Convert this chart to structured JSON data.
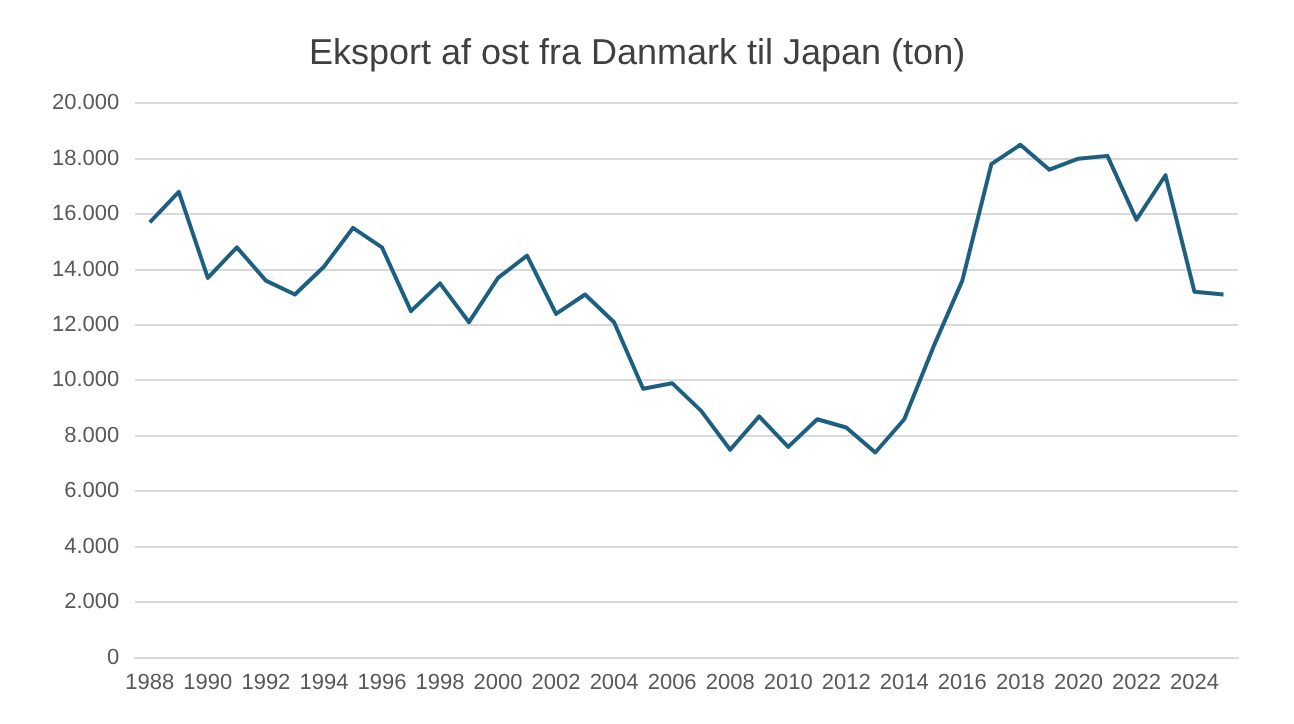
{
  "chart_data": {
    "type": "line",
    "title": "Eksport af ost fra Danmark til Japan (ton)",
    "categories": [
      "1988",
      null,
      "1990",
      null,
      "1992",
      null,
      "1994",
      null,
      "1996",
      null,
      "1998",
      null,
      "2000",
      null,
      "2002",
      null,
      "2004",
      null,
      "2006",
      null,
      "2008",
      null,
      "2010",
      null,
      "2012",
      null,
      "2014",
      null,
      "2016",
      null,
      "2018",
      null,
      "2020",
      null,
      "2022",
      null,
      "2024",
      null
    ],
    "series": [
      {
        "color": "#1d5f80",
        "values": [
          15700,
          16800,
          13700,
          14800,
          13600,
          13100,
          14100,
          15500,
          14800,
          12500,
          13500,
          12100,
          13700,
          14500,
          12400,
          13100,
          12100,
          9700,
          9900,
          8900,
          7500,
          8700,
          7600,
          8600,
          8300,
          7400,
          8600,
          11200,
          13600,
          17800,
          18500,
          17600,
          18000,
          18100,
          15800,
          17400,
          13200,
          13100
        ]
      }
    ],
    "ylim": [
      0,
      20000
    ],
    "yticks": [
      {
        "value": 0,
        "label": "0"
      },
      {
        "value": 2000,
        "label": "2.000"
      },
      {
        "value": 4000,
        "label": "4.000"
      },
      {
        "value": 6000,
        "label": "6.000"
      },
      {
        "value": 8000,
        "label": "8.000"
      },
      {
        "value": 10000,
        "label": "10.000"
      },
      {
        "value": 12000,
        "label": "12.000"
      },
      {
        "value": 14000,
        "label": "14.000"
      },
      {
        "value": 16000,
        "label": "16.000"
      },
      {
        "value": 18000,
        "label": "18.000"
      },
      {
        "value": 20000,
        "label": "20.000"
      }
    ],
    "grid": "y",
    "marker": "none",
    "line_style": "solid"
  }
}
